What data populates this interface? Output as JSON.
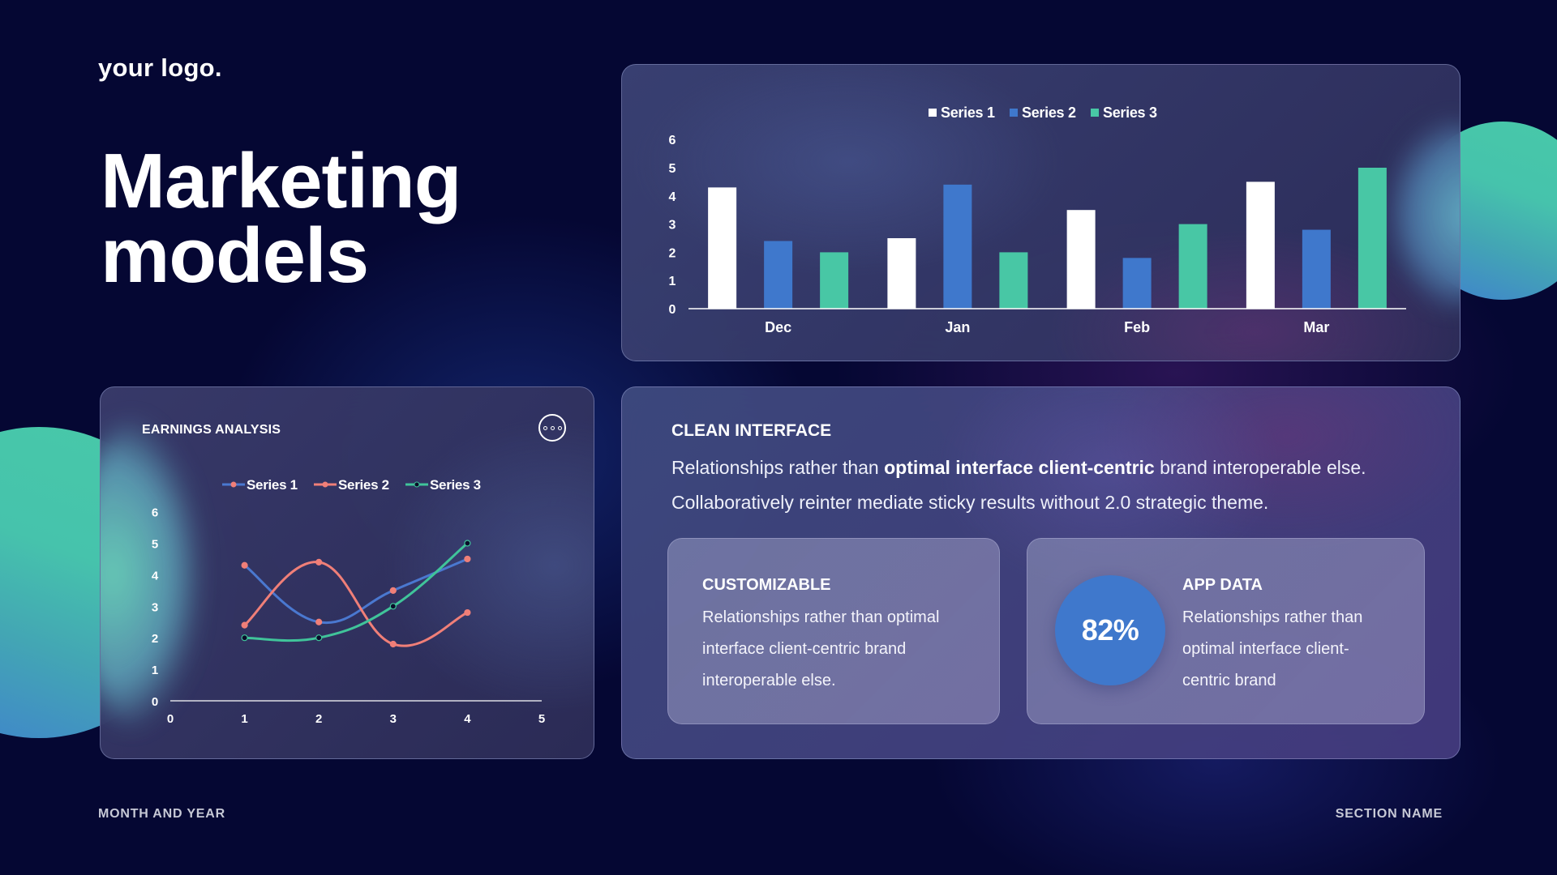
{
  "header": {
    "logo": "your logo.",
    "title_line1": "Marketing",
    "title_line2": "models"
  },
  "footer": {
    "left": "MONTH AND YEAR",
    "right": "SECTION NAME"
  },
  "colors": {
    "background": "#050733",
    "series1_bar": "#ffffff",
    "series2": "#3f78cc",
    "series3": "#48c7a5",
    "series1_line": "#4a78d0",
    "series2_line": "#f07f78",
    "series3_line": "#40c49a",
    "percent_circle": "#3f78cc"
  },
  "earnings_panel": {
    "title": "EARNINGS ANALYSIS",
    "menu_icon": "more-options-icon"
  },
  "clean_interface": {
    "title": "CLEAN INTERFACE",
    "line1_pre": "Relationships rather than ",
    "line1_bold": "optimal interface client-centric",
    "line1_post": " brand interoperable else.",
    "line2": "Collaboratively reinter mediate sticky results  without 2.0 strategic theme."
  },
  "customizable": {
    "title": "CUSTOMIZABLE",
    "body": "Relationships rather than optimal interface client-centric brand interoperable else."
  },
  "app_data": {
    "title": "APP DATA",
    "percent": "82%",
    "body": "Relationships rather than optimal interface client-centric brand"
  },
  "chart_data": [
    {
      "type": "bar",
      "title": "",
      "categories": [
        "Dec",
        "Jan",
        "Feb",
        "Mar"
      ],
      "series": [
        {
          "name": "Series 1",
          "values": [
            4.3,
            2.5,
            3.5,
            4.5
          ],
          "color": "#ffffff"
        },
        {
          "name": "Series 2",
          "values": [
            2.4,
            4.4,
            1.8,
            2.8
          ],
          "color": "#3f78cc"
        },
        {
          "name": "Series 3",
          "values": [
            2.0,
            2.0,
            3.0,
            5.0
          ],
          "color": "#48c7a5"
        }
      ],
      "yticks": [
        "0",
        "1",
        "2",
        "3",
        "4",
        "5",
        "6"
      ],
      "ylim": [
        0,
        6
      ],
      "xlabel": "",
      "ylabel": "",
      "grid": false,
      "legend_position": "top"
    },
    {
      "type": "line",
      "title": "EARNINGS ANALYSIS",
      "x": [
        1,
        2,
        3,
        4
      ],
      "series": [
        {
          "name": "Series 1",
          "values": [
            4.3,
            2.5,
            3.5,
            4.5
          ],
          "color": "#4a78d0"
        },
        {
          "name": "Series 2",
          "values": [
            2.4,
            4.4,
            1.8,
            2.8
          ],
          "color": "#f07f78"
        },
        {
          "name": "Series 3",
          "values": [
            2.0,
            2.0,
            3.0,
            5.0
          ],
          "color": "#40c49a"
        }
      ],
      "xticks": [
        "0",
        "1",
        "2",
        "3",
        "4",
        "5"
      ],
      "yticks": [
        "0",
        "1",
        "2",
        "3",
        "4",
        "5",
        "6"
      ],
      "xlim": [
        0,
        5
      ],
      "ylim": [
        0,
        6
      ],
      "smooth": true,
      "grid": false,
      "legend_position": "top"
    }
  ]
}
